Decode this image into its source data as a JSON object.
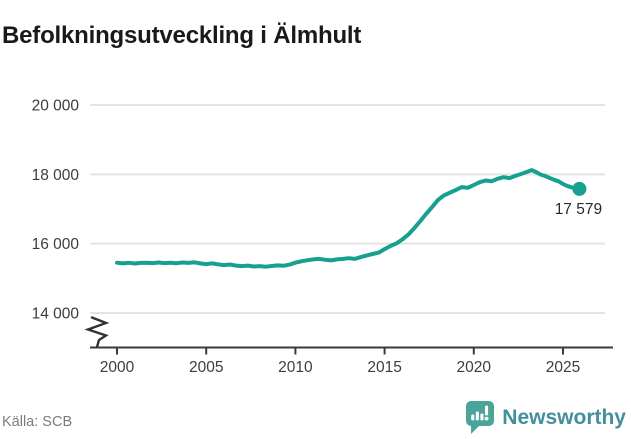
{
  "header": {
    "title": "Befolkningsutveckling i Älmhult"
  },
  "chart_data": {
    "type": "line",
    "title": "Befolkningsutveckling i Älmhult",
    "xlabel": "",
    "ylabel": "",
    "grid": true,
    "legend": "none",
    "axis_break_bottom": true,
    "line_color": "#16a08f",
    "gridline_color": "#e3e3e3",
    "axis_color": "#3a3a3a",
    "x_ticks": [
      {
        "value": 2000,
        "label": "2000"
      },
      {
        "value": 2005,
        "label": "2005"
      },
      {
        "value": 2010,
        "label": "2010"
      },
      {
        "value": 2015,
        "label": "2015"
      },
      {
        "value": 2020,
        "label": "2020"
      },
      {
        "value": 2025,
        "label": "2025"
      }
    ],
    "y_ticks": [
      {
        "value": 20000,
        "label": "20 000"
      },
      {
        "value": 18000,
        "label": "18 000"
      },
      {
        "value": 16000,
        "label": "16 000"
      },
      {
        "value": 14000,
        "label": "14 000"
      }
    ],
    "xlim": [
      1998.5,
      2027.3
    ],
    "ylim_visible": [
      14000,
      20000
    ],
    "end_annotation": {
      "label": "17 579",
      "value": 17579,
      "year": 2025.92
    },
    "series": [
      {
        "name": "Befolkning",
        "points": [
          [
            2000.0,
            15450
          ],
          [
            2000.33,
            15430
          ],
          [
            2000.67,
            15448
          ],
          [
            2001.0,
            15428
          ],
          [
            2001.33,
            15446
          ],
          [
            2001.67,
            15452
          ],
          [
            2002.0,
            15438
          ],
          [
            2002.33,
            15456
          ],
          [
            2002.67,
            15440
          ],
          [
            2003.0,
            15452
          ],
          [
            2003.33,
            15436
          ],
          [
            2003.67,
            15456
          ],
          [
            2004.0,
            15446
          ],
          [
            2004.33,
            15462
          ],
          [
            2004.67,
            15432
          ],
          [
            2005.0,
            15410
          ],
          [
            2005.33,
            15432
          ],
          [
            2005.67,
            15402
          ],
          [
            2006.0,
            15382
          ],
          [
            2006.33,
            15398
          ],
          [
            2006.67,
            15366
          ],
          [
            2007.0,
            15352
          ],
          [
            2007.33,
            15368
          ],
          [
            2007.67,
            15342
          ],
          [
            2008.0,
            15352
          ],
          [
            2008.33,
            15336
          ],
          [
            2008.67,
            15356
          ],
          [
            2009.0,
            15372
          ],
          [
            2009.33,
            15362
          ],
          [
            2009.67,
            15396
          ],
          [
            2010.0,
            15450
          ],
          [
            2010.33,
            15492
          ],
          [
            2010.67,
            15522
          ],
          [
            2011.0,
            15546
          ],
          [
            2011.33,
            15562
          ],
          [
            2011.67,
            15536
          ],
          [
            2012.0,
            15516
          ],
          [
            2012.33,
            15546
          ],
          [
            2012.67,
            15562
          ],
          [
            2013.0,
            15582
          ],
          [
            2013.33,
            15562
          ],
          [
            2013.67,
            15612
          ],
          [
            2014.0,
            15662
          ],
          [
            2014.33,
            15702
          ],
          [
            2014.67,
            15742
          ],
          [
            2015.0,
            15842
          ],
          [
            2015.33,
            15932
          ],
          [
            2015.67,
            16012
          ],
          [
            2016.0,
            16122
          ],
          [
            2016.33,
            16262
          ],
          [
            2016.67,
            16452
          ],
          [
            2017.0,
            16652
          ],
          [
            2017.33,
            16862
          ],
          [
            2017.67,
            17062
          ],
          [
            2018.0,
            17262
          ],
          [
            2018.33,
            17392
          ],
          [
            2018.67,
            17472
          ],
          [
            2019.0,
            17552
          ],
          [
            2019.33,
            17632
          ],
          [
            2019.67,
            17612
          ],
          [
            2020.0,
            17692
          ],
          [
            2020.33,
            17772
          ],
          [
            2020.67,
            17822
          ],
          [
            2021.0,
            17798
          ],
          [
            2021.33,
            17872
          ],
          [
            2021.67,
            17918
          ],
          [
            2022.0,
            17892
          ],
          [
            2022.33,
            17956
          ],
          [
            2022.67,
            18012
          ],
          [
            2023.0,
            18072
          ],
          [
            2023.25,
            18122
          ],
          [
            2023.5,
            18062
          ],
          [
            2023.75,
            17992
          ],
          [
            2024.0,
            17952
          ],
          [
            2024.25,
            17898
          ],
          [
            2024.5,
            17842
          ],
          [
            2024.75,
            17798
          ],
          [
            2025.0,
            17722
          ],
          [
            2025.25,
            17662
          ],
          [
            2025.5,
            17622
          ],
          [
            2025.75,
            17592
          ],
          [
            2025.92,
            17579
          ]
        ]
      }
    ]
  },
  "footer": {
    "source": "Källa: SCB",
    "brand": "Newsworthy"
  },
  "icons": {
    "brand_icon": "speech-bubble-bar-chart-icon",
    "axis_break_icon": "axis-break-zigzag"
  },
  "colors": {
    "accent_teal": "#16a08f",
    "brand_icon_teal": "#4ba49a",
    "brand_text_teal": "#43909c",
    "title_text": "#191919",
    "source_text": "#7c7c7c"
  }
}
